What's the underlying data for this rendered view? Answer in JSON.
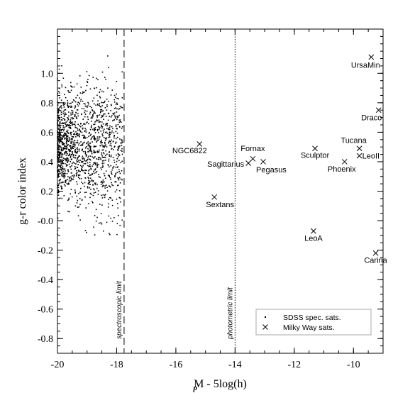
{
  "chart_data": {
    "type": "scatter",
    "xlabel": "M  - 5log(h)",
    "xlabel_subscript": "p",
    "ylabel": "g-r color index",
    "xlim": [
      -20,
      -9
    ],
    "ylim": [
      -0.9,
      1.3
    ],
    "x_ticks": [
      "-20",
      "-18",
      "-16",
      "-14",
      "-12",
      "-10"
    ],
    "y_ticks": [
      "-0.8",
      "-0.6",
      "-0.4",
      "-0.2",
      "-0.0",
      "0.2",
      "0.4",
      "0.6",
      "0.8",
      "1.0"
    ],
    "legend_position": "bottom-right",
    "vlines": [
      {
        "x": -17.75,
        "label": "spectroscopic limit",
        "style": "dashed"
      },
      {
        "x": -14.0,
        "label": "photometric limit",
        "style": "dotted"
      }
    ],
    "series": [
      {
        "name": "SDSS spec. sats.",
        "marker": "dot",
        "description_cloud": {
          "x_range": [
            -20,
            -17.8
          ],
          "y_center": 0.5,
          "y_spread": 0.17,
          "count": 1500
        }
      },
      {
        "name": "Milky Way sats.",
        "marker": "x",
        "points": [
          {
            "label": "UrsaMin",
            "x": -9.4,
            "y": 1.11
          },
          {
            "label": "Draco",
            "x": -9.15,
            "y": 0.75
          },
          {
            "label": "Tucana",
            "x": -9.8,
            "y": 0.49
          },
          {
            "label": "LeoII",
            "x": -9.8,
            "y": 0.44
          },
          {
            "label": "Phoenix",
            "x": -10.3,
            "y": 0.4
          },
          {
            "label": "Sculptor",
            "x": -11.3,
            "y": 0.49
          },
          {
            "label": "NGC6822",
            "x": -15.2,
            "y": 0.52
          },
          {
            "label": "Fornax",
            "x": -13.4,
            "y": 0.42
          },
          {
            "label": "Sagittarius",
            "x": -13.55,
            "y": 0.39
          },
          {
            "label": "Pegasus",
            "x": -13.05,
            "y": 0.4
          },
          {
            "label": "Sextans",
            "x": -14.7,
            "y": 0.16
          },
          {
            "label": "LeoA",
            "x": -11.35,
            "y": -0.07
          },
          {
            "label": "Carina",
            "x": -9.25,
            "y": -0.22
          }
        ]
      }
    ]
  }
}
